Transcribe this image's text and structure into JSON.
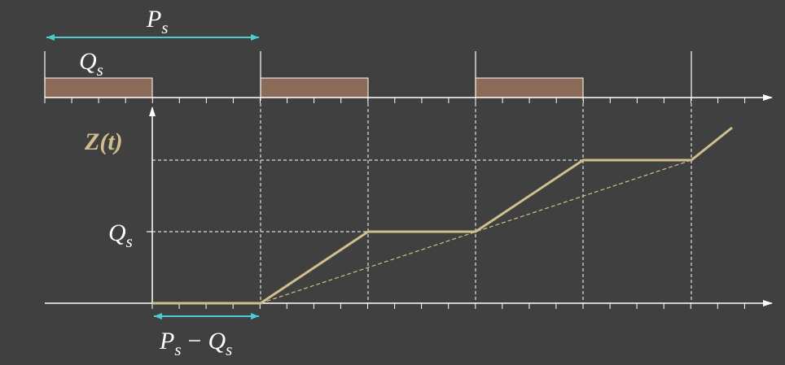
{
  "colors": {
    "background": "#404040",
    "axis": "#ffffff",
    "slot_fill": "#8b6b55",
    "curve": "#cfc08a",
    "arrow": "#44d1d1",
    "guide": "#ffffff"
  },
  "labels": {
    "period": "P",
    "period_sub": "s",
    "slot": "Q",
    "slot_sub": "s",
    "curve_name": "Z(t)",
    "y_mark": "Q",
    "y_mark_sub": "s",
    "gap_p": "P",
    "gap_p_sub": "s",
    "gap_minus": "−",
    "gap_q": "Q",
    "gap_q_sub": "s"
  }
}
